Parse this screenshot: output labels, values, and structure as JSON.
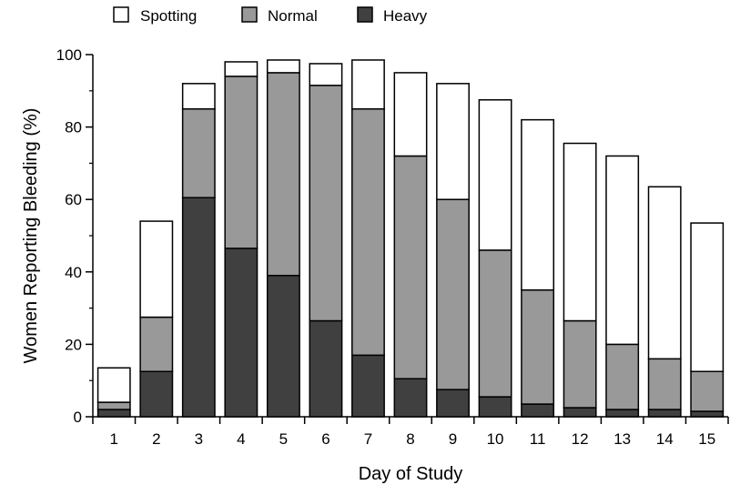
{
  "chart_data": {
    "type": "bar",
    "stacked": true,
    "xlabel": "Day of Study",
    "ylabel": "Women Reporting Bleeding (%)",
    "ylim": [
      0,
      100
    ],
    "yticks": [
      0,
      20,
      40,
      60,
      80,
      100
    ],
    "grid": false,
    "legend_position": "top",
    "categories": [
      "1",
      "2",
      "3",
      "4",
      "5",
      "6",
      "7",
      "8",
      "9",
      "10",
      "11",
      "12",
      "13",
      "14",
      "15"
    ],
    "series": [
      {
        "name": "Heavy",
        "color": "#404040",
        "values": [
          2,
          12.5,
          60.5,
          46.5,
          39,
          26.5,
          17,
          10.5,
          7.5,
          5.5,
          3.5,
          2.5,
          2,
          2,
          1.5
        ]
      },
      {
        "name": "Normal",
        "color": "#999999",
        "values": [
          2,
          15,
          24.5,
          47.5,
          56,
          65,
          68,
          61.5,
          52.5,
          40.5,
          31.5,
          24,
          18,
          14,
          11
        ]
      },
      {
        "name": "Spotting",
        "color": "#ffffff",
        "values": [
          9.5,
          26.5,
          7,
          4,
          3.5,
          6,
          13.5,
          23,
          32,
          41.5,
          47,
          49,
          52,
          47.5,
          41
        ]
      }
    ],
    "legend": [
      {
        "label": "Spotting",
        "color": "#ffffff"
      },
      {
        "label": "Normal",
        "color": "#999999"
      },
      {
        "label": "Heavy",
        "color": "#404040"
      }
    ]
  }
}
